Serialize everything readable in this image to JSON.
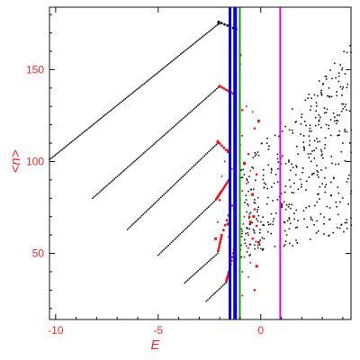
{
  "chart_data": {
    "type": "scatter",
    "title": "",
    "xlabel": "E",
    "ylabel": "<n>",
    "xlim": [
      -10.3,
      4.4
    ],
    "ylim": [
      14,
      184
    ],
    "x_ticks": [
      -10,
      -5,
      0
    ],
    "y_ticks": [
      50,
      100,
      150
    ],
    "frame_color": "#111111",
    "tick_color": "#ff2a2a",
    "branches": [
      {
        "x_start": -10.3,
        "x_end": -2.05,
        "y_start": 101,
        "y_end": 175,
        "x_peak": -2.05,
        "y_peak": 176,
        "x_turn": -1.2,
        "y_turn": 172
      },
      {
        "x_start": -8.2,
        "x_end": -2.0,
        "y_start": 80,
        "y_end": 141,
        "x_peak": -2.0,
        "y_peak": 141,
        "x_turn": -1.35,
        "y_turn": 137
      },
      {
        "x_start": -6.5,
        "x_end": -2.1,
        "y_start": 63,
        "y_end": 110,
        "x_peak": -2.1,
        "y_peak": 111,
        "x_turn": -1.5,
        "y_turn": 104
      },
      {
        "x_start": -5.0,
        "x_end": -2.2,
        "y_start": 49,
        "y_end": 79,
        "x_peak": -1.9,
        "y_peak": 84,
        "x_turn": -1.55,
        "y_turn": 90
      },
      {
        "x_start": -3.7,
        "x_end": -2.1,
        "y_start": 34,
        "y_end": 50,
        "x_peak": -1.9,
        "y_peak": 60,
        "x_turn": -1.4,
        "y_turn": 76
      },
      {
        "x_start": -2.65,
        "x_end": -1.7,
        "y_start": 24,
        "y_end": 34,
        "x_peak": -1.55,
        "y_peak": 40,
        "x_turn": -1.3,
        "y_turn": 52
      }
    ],
    "red_points": [
      [
        -1.0,
        158
      ],
      [
        -1.0,
        153
      ],
      [
        -0.7,
        130
      ],
      [
        -0.9,
        128
      ],
      [
        -0.4,
        127
      ],
      [
        -0.1,
        122
      ],
      [
        -0.3,
        118
      ],
      [
        -0.9,
        114
      ],
      [
        -1.0,
        109
      ],
      [
        -0.6,
        104
      ],
      [
        -0.8,
        99
      ],
      [
        -0.5,
        95
      ],
      [
        -0.2,
        93
      ],
      [
        -0.7,
        88
      ],
      [
        -0.9,
        84
      ],
      [
        -0.4,
        82
      ],
      [
        -1.0,
        79
      ],
      [
        -0.6,
        76
      ],
      [
        -0.3,
        74
      ],
      [
        -0.8,
        70
      ],
      [
        -0.5,
        67
      ],
      [
        -0.2,
        65
      ],
      [
        -0.9,
        62
      ],
      [
        -0.6,
        60
      ],
      [
        -0.4,
        58
      ],
      [
        -0.1,
        56
      ],
      [
        -0.7,
        54
      ],
      [
        -1.0,
        52
      ],
      [
        -0.8,
        48
      ],
      [
        -0.5,
        45
      ],
      [
        -0.2,
        43
      ],
      [
        -0.9,
        40
      ],
      [
        -0.6,
        37
      ],
      [
        -0.3,
        30
      ],
      [
        -0.9,
        27
      ],
      [
        -1.5,
        120
      ],
      [
        -1.6,
        106
      ],
      [
        -1.4,
        96
      ],
      [
        -1.5,
        86
      ],
      [
        -1.3,
        74
      ],
      [
        -1.6,
        66
      ],
      [
        -1.5,
        58
      ],
      [
        -1.2,
        47
      ],
      [
        -1.3,
        38
      ],
      [
        -1.2,
        33
      ],
      [
        -1.25,
        20
      ],
      [
        -1.75,
        100
      ],
      [
        -1.9,
        92
      ],
      [
        -2.0,
        79
      ],
      [
        -2.1,
        67
      ],
      [
        -2.2,
        58
      ],
      [
        -1.55,
        59
      ],
      [
        -1.3,
        62
      ],
      [
        -0.85,
        66
      ],
      [
        -0.55,
        70
      ],
      [
        -0.35,
        70
      ]
    ],
    "black_points_count": 420,
    "black_region": {
      "x": [
        -1.0,
        4.4
      ],
      "y": [
        46,
        178
      ]
    },
    "vertical_lines": [
      {
        "x": -1.25,
        "color": "#0000ee",
        "width": 4
      },
      {
        "x": -1.5,
        "color": "#0000ee",
        "width": 3
      },
      {
        "x": -1.02,
        "color": "#1f8f1f",
        "width": 2
      },
      {
        "x": 0.95,
        "color": "#ee00ee",
        "width": 2
      }
    ],
    "grid": false,
    "legend": "none"
  }
}
